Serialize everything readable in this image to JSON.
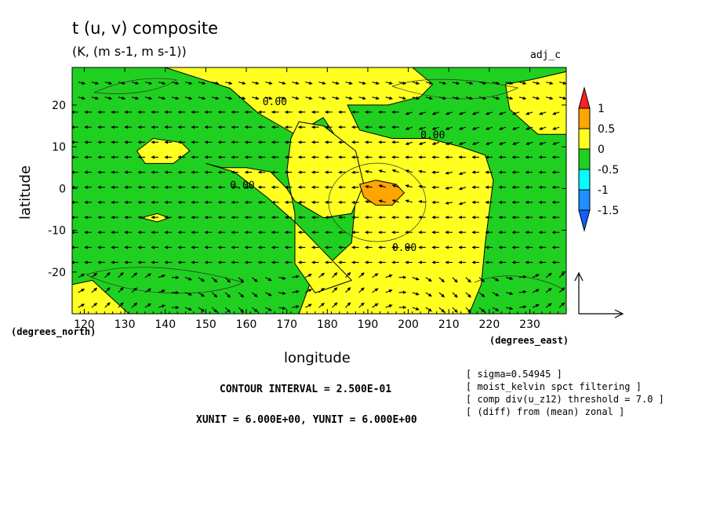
{
  "header": {
    "title": "t (u, v) composite",
    "subtitle": "(K, (m s-1, m s-1))",
    "tag": "adj_c"
  },
  "footer": {
    "contour_interval": "CONTOUR INTERVAL = 2.500E-01",
    "units": "XUNIT = 6.000E+00, YUNIT = 6.000E+00",
    "notes": [
      "[ sigma=0.54945 ]",
      "[ moist_kelvin spct filtering ]",
      "[ comp div(u_z12) threshold = 7.0 ]",
      "[ (diff) from (mean) zonal ]"
    ]
  },
  "chart_data": {
    "type": "heatmap",
    "title": "t (u, v) composite",
    "subtitle": "(K, (m s-1, m s-1))",
    "xlabel": "longitude",
    "ylabel": "latitude",
    "x_unit_label": "(degrees_east)",
    "y_unit_label": "(degrees_north)",
    "xlim": [
      117,
      239
    ],
    "ylim": [
      -30,
      29
    ],
    "x_ticks": [
      120,
      130,
      140,
      150,
      160,
      170,
      180,
      190,
      200,
      210,
      220,
      230
    ],
    "y_ticks": [
      -20,
      -10,
      0,
      10,
      20
    ],
    "contour_labels": [
      "0.00",
      "0.00",
      "0.00",
      "0.00"
    ],
    "colorbar": {
      "labels": [
        "1",
        "0.5",
        "0",
        "-0.5",
        "-1",
        "-1.5"
      ],
      "colors": [
        "#ff2020",
        "#ffa500",
        "#ffff20",
        "#20d020",
        "#00ffff",
        "#1e90ff",
        "#1060ff"
      ]
    },
    "colors": {
      "positive_low": "#ffff20",
      "positive_mid": "#ffa500",
      "negative_low": "#20d020"
    },
    "regions": [
      {
        "level": "0 to 0.5",
        "color": "#ffff20",
        "polygon": [
          [
            125,
            29
          ],
          [
            140,
            29
          ],
          [
            156,
            24
          ],
          [
            163,
            18
          ],
          [
            172,
            13
          ],
          [
            179,
            17
          ],
          [
            185,
            8
          ],
          [
            187,
            -2
          ],
          [
            186,
            -13
          ],
          [
            176,
            -22
          ],
          [
            173,
            -30
          ],
          [
            215,
            -30
          ],
          [
            218,
            -23
          ],
          [
            219,
            -13
          ],
          [
            221,
            2
          ],
          [
            219,
            8
          ],
          [
            213,
            10
          ],
          [
            205,
            12
          ],
          [
            196,
            12
          ],
          [
            188,
            14
          ],
          [
            185,
            20
          ],
          [
            195,
            20
          ],
          [
            203,
            22
          ],
          [
            206,
            25
          ],
          [
            201,
            29
          ]
        ]
      },
      {
        "level": "0 to 0.5",
        "color": "#ffff20",
        "polygon": [
          [
            173,
            16
          ],
          [
            179,
            15
          ],
          [
            187,
            9
          ],
          [
            189,
            1
          ],
          [
            186,
            -6
          ],
          [
            179,
            -7
          ],
          [
            172,
            -3
          ],
          [
            170,
            0
          ],
          [
            166,
            4
          ],
          [
            160,
            5
          ],
          [
            154,
            5
          ],
          [
            150,
            6
          ],
          [
            157,
            4
          ],
          [
            165,
            -2
          ],
          [
            172,
            -8
          ],
          [
            178,
            -14
          ],
          [
            186,
            -22
          ],
          [
            177,
            -25
          ],
          [
            172,
            -18
          ],
          [
            172,
            -6
          ],
          [
            170,
            4
          ],
          [
            171,
            12
          ]
        ]
      },
      {
        "level": "0 to 0.5",
        "color": "#ffff20",
        "polygon": [
          [
            133,
            9
          ],
          [
            137,
            12
          ],
          [
            144,
            11
          ],
          [
            146,
            9
          ],
          [
            142,
            6
          ],
          [
            135,
            6
          ]
        ]
      },
      {
        "level": "0 to 0.5",
        "color": "#ffff20",
        "polygon": [
          [
            134,
            -7
          ],
          [
            138,
            -6
          ],
          [
            141,
            -7
          ],
          [
            138,
            -8
          ]
        ]
      },
      {
        "level": "0 to 0.5",
        "color": "#ffff20",
        "polygon": [
          [
            117,
            -23
          ],
          [
            122,
            -22
          ],
          [
            131,
            -30
          ],
          [
            117,
            -30
          ]
        ]
      },
      {
        "level": "0 to 0.5",
        "color": "#ffff20",
        "polygon": [
          [
            224,
            25
          ],
          [
            230,
            26
          ],
          [
            239,
            28
          ],
          [
            239,
            13
          ],
          [
            232,
            13
          ],
          [
            225,
            19
          ]
        ]
      },
      {
        "level": "0.5 to 1",
        "color": "#ffa500",
        "polygon": [
          [
            188,
            1
          ],
          [
            192,
            2
          ],
          [
            197,
            1
          ],
          [
            199,
            -1
          ],
          [
            196,
            -4
          ],
          [
            192,
            -4
          ],
          [
            189,
            -2
          ]
        ]
      }
    ]
  }
}
